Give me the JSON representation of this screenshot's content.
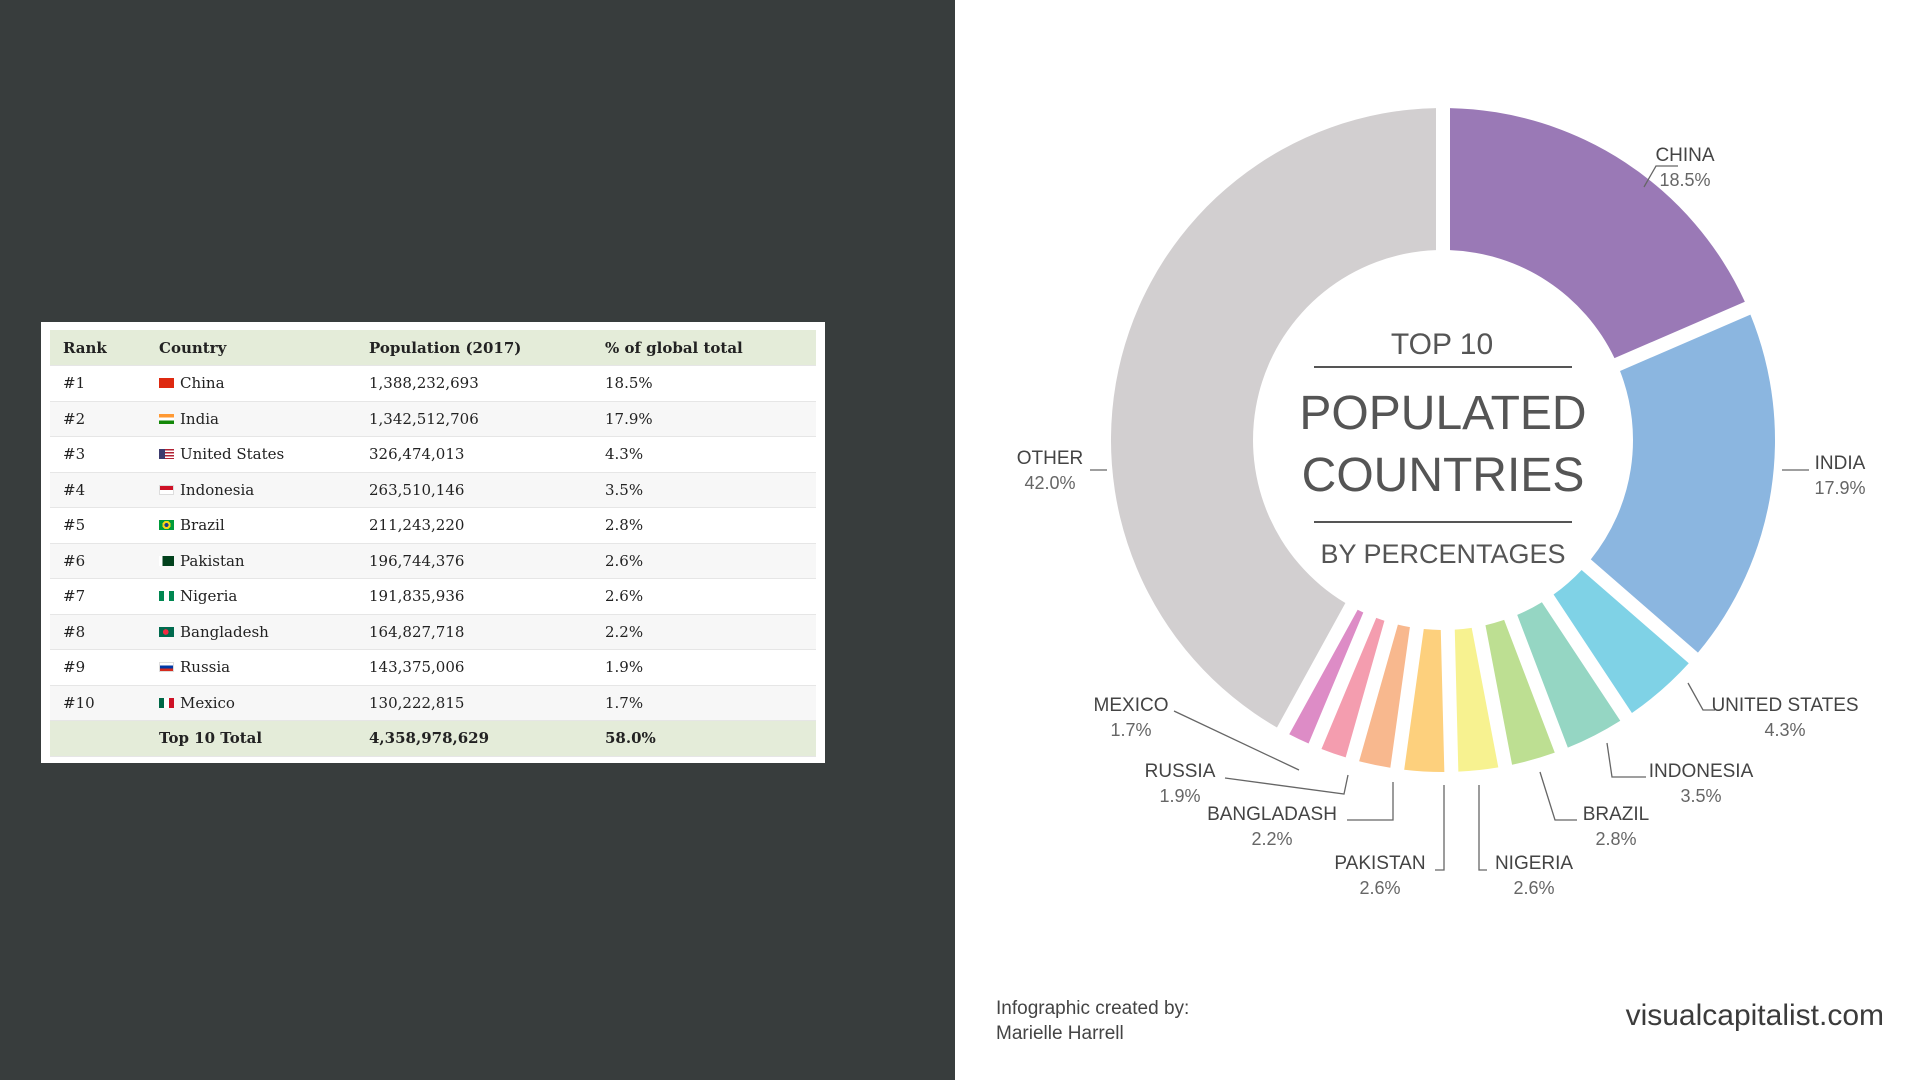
{
  "table": {
    "headers": [
      "Rank",
      "Country",
      "Population (2017)",
      "% of global total"
    ],
    "rows": [
      {
        "rank": "#1",
        "country": "China",
        "population": "1,388,232,693",
        "percent": "18.5%",
        "flag": "china-flag-icon"
      },
      {
        "rank": "#2",
        "country": "India",
        "population": "1,342,512,706",
        "percent": "17.9%",
        "flag": "india-flag-icon"
      },
      {
        "rank": "#3",
        "country": "United States",
        "population": "326,474,013",
        "percent": "4.3%",
        "flag": "united-states-flag-icon"
      },
      {
        "rank": "#4",
        "country": "Indonesia",
        "population": "263,510,146",
        "percent": "3.5%",
        "flag": "indonesia-flag-icon"
      },
      {
        "rank": "#5",
        "country": "Brazil",
        "population": "211,243,220",
        "percent": "2.8%",
        "flag": "brazil-flag-icon"
      },
      {
        "rank": "#6",
        "country": "Pakistan",
        "population": "196,744,376",
        "percent": "2.6%",
        "flag": "pakistan-flag-icon"
      },
      {
        "rank": "#7",
        "country": "Nigeria",
        "population": "191,835,936",
        "percent": "2.6%",
        "flag": "nigeria-flag-icon"
      },
      {
        "rank": "#8",
        "country": "Bangladesh",
        "population": "164,827,718",
        "percent": "2.2%",
        "flag": "bangladesh-flag-icon"
      },
      {
        "rank": "#9",
        "country": "Russia",
        "population": "143,375,006",
        "percent": "1.9%",
        "flag": "russia-flag-icon"
      },
      {
        "rank": "#10",
        "country": "Mexico",
        "population": "130,222,815",
        "percent": "1.7%",
        "flag": "mexico-flag-icon"
      }
    ],
    "total": {
      "label": "Top 10 Total",
      "population": "4,358,978,629",
      "percent": "58.0%"
    }
  },
  "chart_data": {
    "type": "pie",
    "variant": "donut",
    "title_lines": [
      "TOP 10",
      "POPULATED",
      "COUNTRIES",
      "BY PERCENTAGES"
    ],
    "slices": [
      {
        "label": "CHINA",
        "value": 18.5,
        "display": "18.5%",
        "color": "#9a79b6"
      },
      {
        "label": "INDIA",
        "value": 17.9,
        "display": "17.9%",
        "color": "#8bb6e0"
      },
      {
        "label": "UNITED STATES",
        "value": 4.3,
        "display": "4.3%",
        "color": "#7fd2e6"
      },
      {
        "label": "INDONESIA",
        "value": 3.5,
        "display": "3.5%",
        "color": "#95d6c3"
      },
      {
        "label": "BRAZIL",
        "value": 2.8,
        "display": "2.8%",
        "color": "#bddf92"
      },
      {
        "label": "NIGERIA",
        "value": 2.6,
        "display": "2.6%",
        "color": "#f7f290"
      },
      {
        "label": "PAKISTAN",
        "value": 2.6,
        "display": "2.6%",
        "color": "#fdd07d"
      },
      {
        "label": "BANGLADASH",
        "value": 2.2,
        "display": "2.2%",
        "color": "#f8b88e"
      },
      {
        "label": "RUSSIA",
        "value": 1.9,
        "display": "1.9%",
        "color": "#f49daf"
      },
      {
        "label": "MEXICO",
        "value": 1.7,
        "display": "1.7%",
        "color": "#dd8cc6"
      },
      {
        "label": "OTHER",
        "value": 42.0,
        "display": "42.0%",
        "color": "#d2cfd0"
      }
    ]
  },
  "footer": {
    "credit_line1": "Infographic created by:",
    "credit_line2": "Marielle Harrell",
    "brand": "visualcapitalist.com"
  }
}
